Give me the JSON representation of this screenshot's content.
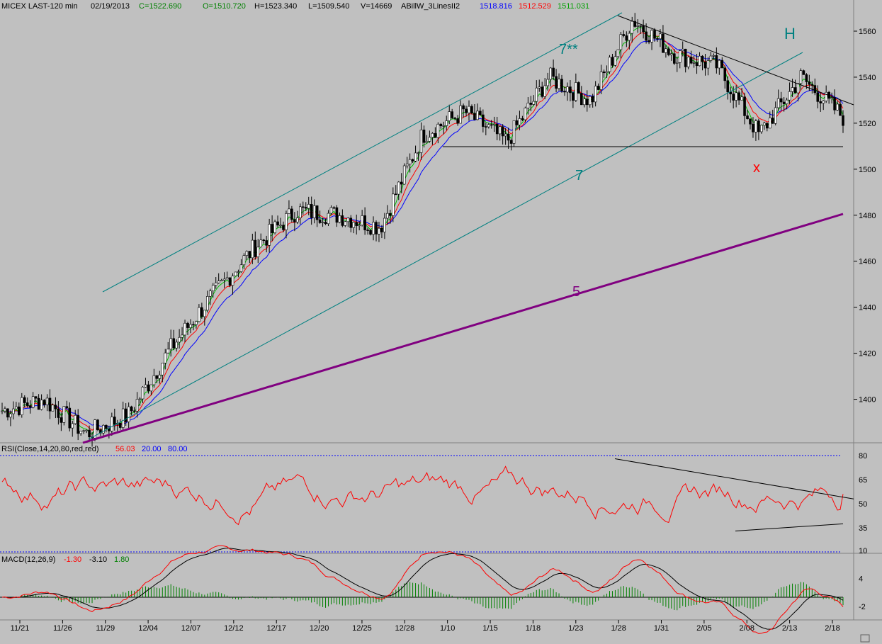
{
  "header": {
    "symbol": "MICEX LAST-120 min",
    "date": "02/19/2013",
    "close": "C=1522.690",
    "open": "O=1510.720",
    "high": "H=1523.340",
    "low": "L=1509.540",
    "volume": "V=14669",
    "indicator": "ABillW_3LinesII2",
    "ma1": "1518.816",
    "ma2": "1512.529",
    "ma3": "1511.031"
  },
  "colors": {
    "background": "#c0c0c0",
    "candles": "#000000",
    "ma_blue": "#0000ff",
    "ma_red": "#ff0000",
    "ma_green": "#00c000",
    "channel": "#008080",
    "trend5": "#800080",
    "rsi": "#ff0000",
    "macd_line": "#ff0000",
    "signal_line": "#000000",
    "histogram": "#008000",
    "level_line": "#0000ff"
  },
  "annotations": {
    "channel_upper": "7**",
    "channel_lower": "7",
    "trend_purple": "5",
    "h_label": "H",
    "x_label": "x"
  },
  "rsi_panel": {
    "label": "RSI(Close,14,20,80,red,red)",
    "value": "56.03",
    "low_level": "20.00",
    "high_level": "80.00"
  },
  "macd_panel": {
    "label": "MACD(12,26,9)",
    "macd": "-1.30",
    "signal": "-3.10",
    "hist": "1.80"
  },
  "chart_data": [
    {
      "type": "candlestick",
      "title": "MICEX LAST-120 min",
      "y_ticks": [
        1400,
        1420,
        1440,
        1460,
        1480,
        1500,
        1520,
        1540,
        1560
      ],
      "ylim": [
        1382,
        1568
      ],
      "x_ticks": [
        "11/21",
        "11/26",
        "11/29",
        "12/04",
        "12/07",
        "12/12",
        "12/17",
        "12/20",
        "12/25",
        "12/28",
        "1/10",
        "1/15",
        "1/18",
        "1/23",
        "1/28",
        "1/31",
        "2/05",
        "2/08",
        "2/13",
        "2/18"
      ],
      "key_points": [
        {
          "date": "11/21",
          "close": 1395
        },
        {
          "date": "11/26",
          "close": 1400
        },
        {
          "date": "11/27",
          "close": 1385
        },
        {
          "date": "11/29",
          "close": 1393
        },
        {
          "date": "12/04",
          "close": 1422
        },
        {
          "date": "12/07",
          "close": 1445
        },
        {
          "date": "12/12",
          "close": 1466
        },
        {
          "date": "12/17",
          "close": 1482
        },
        {
          "date": "12/20",
          "close": 1480
        },
        {
          "date": "12/25",
          "close": 1475
        },
        {
          "date": "12/28",
          "close": 1515
        },
        {
          "date": "1/10",
          "close": 1525
        },
        {
          "date": "1/15",
          "close": 1512
        },
        {
          "date": "1/18",
          "close": 1540
        },
        {
          "date": "1/23",
          "close": 1530
        },
        {
          "date": "1/28",
          "close": 1565
        },
        {
          "date": "1/31",
          "close": 1550
        },
        {
          "date": "2/05",
          "close": 1545
        },
        {
          "date": "2/08",
          "close": 1515
        },
        {
          "date": "2/13",
          "close": 1540
        },
        {
          "date": "2/18",
          "close": 1522.69
        }
      ],
      "overlays": [
        "3 moving averages (blue, red, green)",
        "channel 7**",
        "channel 7",
        "trendline 5",
        "support ~1508",
        "descending resistance"
      ]
    },
    {
      "type": "line",
      "title": "RSI(Close,14,20,80,red,red)",
      "y_ticks": [
        35,
        50,
        65,
        80
      ],
      "ylim": [
        12,
        82
      ],
      "levels": [
        20,
        80
      ],
      "last": 56.03
    },
    {
      "type": "line",
      "title": "MACD(12,26,9)",
      "y_ticks": [
        -2,
        4,
        10
      ],
      "ylim": [
        -5,
        12
      ],
      "series": [
        {
          "name": "MACD",
          "last": -1.3
        },
        {
          "name": "Signal",
          "last": -3.1
        },
        {
          "name": "Histogram",
          "last": 1.8
        }
      ]
    }
  ]
}
